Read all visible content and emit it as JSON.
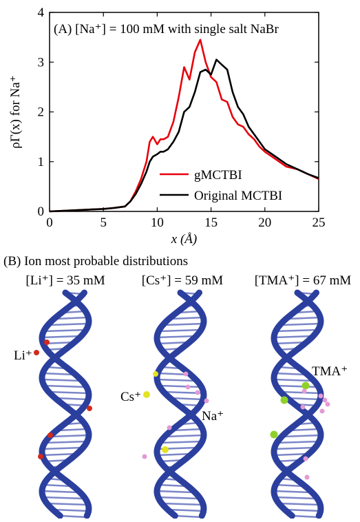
{
  "chart_data": {
    "type": "line",
    "title": "(A) [Na⁺] = 100 mM with single salt NaBr",
    "xlabel": "x (Å)",
    "ylabel": "ρΓ(x) for Na⁺",
    "x": [
      0,
      1,
      2,
      3,
      4,
      5,
      6,
      7,
      7.5,
      8,
      8.5,
      9,
      9.3,
      9.6,
      10,
      10.3,
      10.6,
      11,
      11.5,
      12,
      12.5,
      13,
      13.5,
      14,
      14.5,
      15,
      15.5,
      16,
      16.5,
      17,
      17.5,
      18,
      18.5,
      19,
      19.5,
      20,
      21,
      22,
      23,
      24,
      25
    ],
    "series": [
      {
        "name": "gMCTBI",
        "color": "#e8000b",
        "values": [
          0,
          0.01,
          0.02,
          0.03,
          0.04,
          0.05,
          0.07,
          0.1,
          0.2,
          0.4,
          0.65,
          1.0,
          1.4,
          1.5,
          1.35,
          1.45,
          1.45,
          1.5,
          1.8,
          2.3,
          2.9,
          2.65,
          3.2,
          3.45,
          3.0,
          2.7,
          2.6,
          2.25,
          2.2,
          1.9,
          1.75,
          1.7,
          1.55,
          1.45,
          1.3,
          1.2,
          1.05,
          0.9,
          0.85,
          0.75,
          0.65
        ]
      },
      {
        "name": "Original MCTBI",
        "color": "#000000",
        "values": [
          0,
          0.01,
          0.02,
          0.03,
          0.04,
          0.05,
          0.07,
          0.1,
          0.2,
          0.35,
          0.55,
          0.8,
          1.0,
          1.1,
          1.15,
          1.2,
          1.2,
          1.25,
          1.4,
          1.6,
          2.0,
          2.1,
          2.4,
          2.8,
          2.85,
          2.75,
          3.05,
          2.95,
          2.85,
          2.4,
          2.1,
          1.95,
          1.7,
          1.55,
          1.4,
          1.25,
          1.1,
          0.95,
          0.85,
          0.75,
          0.67
        ]
      }
    ],
    "xlim": [
      0,
      25
    ],
    "xticks": [
      0,
      5,
      10,
      15,
      20,
      25
    ],
    "ylim": [
      0,
      4
    ],
    "yticks": [
      0,
      1,
      2,
      3,
      4
    ],
    "grid": false,
    "legend": "lower right"
  },
  "panel_b": {
    "title": "(B) Ion most probable distributions",
    "headers": [
      "[Li⁺] = 35 mM",
      "[Cs⁺] = 59 mM",
      "[TMA⁺] = 67 mM"
    ],
    "ion_labels": [
      "Li⁺",
      "Cs⁺",
      "Na⁺",
      "TMA⁺"
    ]
  }
}
